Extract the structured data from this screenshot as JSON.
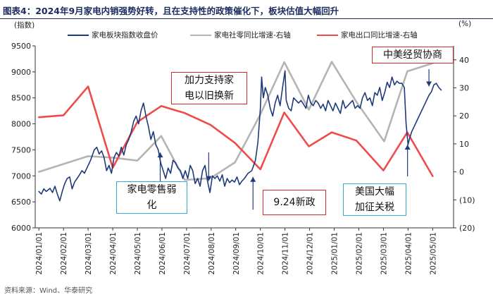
{
  "figure_title": "图表4：2024年9月家电内销强势好转，且在支持性的政策催化下，板块估值大幅回升",
  "source": "资料来源：Wind、华泰研究",
  "units": {
    "left": "(指数)",
    "right": "(%)"
  },
  "colors": {
    "index": "#1f3a7a",
    "domestic": "#b4b4b4",
    "export": "#f04b4b",
    "axis": "#333333"
  },
  "chart_data": {
    "type": "line",
    "xlabel": "",
    "ylabel_left": "(指数)",
    "ylabel_right": "(%)",
    "ylim_left": [
      6000,
      9500
    ],
    "yticks_left": [
      "6000",
      "6500",
      "7000",
      "7500",
      "8000",
      "8500",
      "9000",
      "9500"
    ],
    "ylim_right": [
      -20,
      45
    ],
    "yticks_right": [
      "(20)",
      "(10)",
      "0",
      "10",
      "20",
      "30",
      "40"
    ],
    "x_tick_labels": [
      "2024/01/01",
      "2024/02/01",
      "2024/03/01",
      "2024/04/01",
      "2024/05/01",
      "2024/06/01",
      "2024/07/01",
      "2024/08/01",
      "2024/09/01",
      "2024/10/01",
      "2024/11/01",
      "2024/12/01",
      "2025/01/01",
      "2025/02/01",
      "2025/03/01",
      "2025/04/01",
      "2025/05/01"
    ],
    "series": [
      {
        "name": "家电板块指数收盘价",
        "axis": "left",
        "points": [
          [
            0,
            6700
          ],
          [
            0.1,
            6650
          ],
          [
            0.2,
            6750
          ],
          [
            0.3,
            6700
          ],
          [
            0.45,
            6760
          ],
          [
            0.55,
            6680
          ],
          [
            0.65,
            6800
          ],
          [
            0.75,
            6650
          ],
          [
            0.85,
            6520
          ],
          [
            0.95,
            6700
          ],
          [
            1.05,
            6850
          ],
          [
            1.15,
            6950
          ],
          [
            1.25,
            6980
          ],
          [
            1.35,
            6750
          ],
          [
            1.45,
            6880
          ],
          [
            1.55,
            6950
          ],
          [
            1.65,
            7020
          ],
          [
            1.75,
            7100
          ],
          [
            1.85,
            7050
          ],
          [
            1.95,
            7150
          ],
          [
            2.1,
            7300
          ],
          [
            2.25,
            7500
          ],
          [
            2.35,
            7550
          ],
          [
            2.45,
            7420
          ],
          [
            2.55,
            7480
          ],
          [
            2.65,
            7350
          ],
          [
            2.75,
            7100
          ],
          [
            2.85,
            7200
          ],
          [
            2.95,
            7050
          ],
          [
            3.05,
            7350
          ],
          [
            3.15,
            7450
          ],
          [
            3.25,
            7380
          ],
          [
            3.35,
            7550
          ],
          [
            3.45,
            7400
          ],
          [
            3.55,
            7600
          ],
          [
            3.65,
            7700
          ],
          [
            3.75,
            7850
          ],
          [
            3.85,
            8050
          ],
          [
            3.95,
            8150
          ],
          [
            4.05,
            8000
          ],
          [
            4.15,
            8250
          ],
          [
            4.25,
            8400
          ],
          [
            4.35,
            8150
          ],
          [
            4.45,
            7950
          ],
          [
            4.55,
            7700
          ],
          [
            4.65,
            7850
          ],
          [
            4.75,
            7600
          ],
          [
            4.85,
            7500
          ],
          [
            4.95,
            7250
          ],
          [
            5.05,
            7100
          ],
          [
            5.15,
            6950
          ],
          [
            5.25,
            7150
          ],
          [
            5.35,
            7050
          ],
          [
            5.45,
            7300
          ],
          [
            5.55,
            7250
          ],
          [
            5.65,
            7150
          ],
          [
            5.75,
            7100
          ],
          [
            5.85,
            6950
          ],
          [
            5.95,
            7100
          ],
          [
            6.05,
            6950
          ],
          [
            6.15,
            7200
          ],
          [
            6.25,
            7100
          ],
          [
            6.35,
            6850
          ],
          [
            6.45,
            6950
          ],
          [
            6.55,
            6800
          ],
          [
            6.65,
            7100
          ],
          [
            6.75,
            7200
          ],
          [
            6.85,
            6900
          ],
          [
            6.95,
            6680
          ],
          [
            7.05,
            7000
          ],
          [
            7.15,
            6950
          ],
          [
            7.25,
            7000
          ],
          [
            7.35,
            6900
          ],
          [
            7.45,
            7020
          ],
          [
            7.55,
            6800
          ],
          [
            7.65,
            6950
          ],
          [
            7.75,
            6870
          ],
          [
            7.85,
            6920
          ],
          [
            7.95,
            6880
          ],
          [
            8.05,
            6980
          ],
          [
            8.15,
            6830
          ],
          [
            8.25,
            6900
          ],
          [
            8.35,
            6950
          ],
          [
            8.5,
            7050
          ],
          [
            8.65,
            7100
          ],
          [
            8.8,
            7300
          ],
          [
            8.9,
            7650
          ],
          [
            9.0,
            8300
          ],
          [
            9.05,
            8900
          ],
          [
            9.12,
            8500
          ],
          [
            9.2,
            8700
          ],
          [
            9.3,
            8550
          ],
          [
            9.4,
            8300
          ],
          [
            9.5,
            8150
          ],
          [
            9.6,
            8400
          ],
          [
            9.7,
            8550
          ],
          [
            9.8,
            8350
          ],
          [
            9.9,
            8700
          ],
          [
            10.0,
            9020
          ],
          [
            10.05,
            8450
          ],
          [
            10.15,
            8300
          ],
          [
            10.25,
            8250
          ],
          [
            10.35,
            8500
          ],
          [
            10.45,
            8450
          ],
          [
            10.55,
            8400
          ],
          [
            10.65,
            8450
          ],
          [
            10.75,
            8380
          ],
          [
            10.85,
            8300
          ],
          [
            10.95,
            8550
          ],
          [
            11.05,
            8400
          ],
          [
            11.15,
            8350
          ],
          [
            11.25,
            8450
          ],
          [
            11.35,
            8400
          ],
          [
            11.45,
            8300
          ],
          [
            11.55,
            8380
          ],
          [
            11.65,
            8250
          ],
          [
            11.75,
            8450
          ],
          [
            11.85,
            8350
          ],
          [
            11.95,
            8250
          ],
          [
            12.05,
            8400
          ],
          [
            12.15,
            8300
          ],
          [
            12.25,
            8200
          ],
          [
            12.35,
            8450
          ],
          [
            12.45,
            8300
          ],
          [
            12.55,
            8350
          ],
          [
            12.65,
            8400
          ],
          [
            12.75,
            8450
          ],
          [
            12.85,
            8300
          ],
          [
            12.95,
            8350
          ],
          [
            13.05,
            8300
          ],
          [
            13.15,
            8500
          ],
          [
            13.25,
            8600
          ],
          [
            13.35,
            8450
          ],
          [
            13.45,
            8500
          ],
          [
            13.55,
            8350
          ],
          [
            13.65,
            8600
          ],
          [
            13.75,
            8550
          ],
          [
            13.85,
            8700
          ],
          [
            13.95,
            8450
          ],
          [
            14.05,
            8600
          ],
          [
            14.15,
            8800
          ],
          [
            14.25,
            8700
          ],
          [
            14.35,
            8900
          ],
          [
            14.45,
            8750
          ],
          [
            14.55,
            8820
          ],
          [
            14.65,
            8780
          ],
          [
            14.75,
            8780
          ],
          [
            14.85,
            8700
          ],
          [
            14.92,
            8000
          ],
          [
            15.0,
            7600
          ],
          [
            15.05,
            7700
          ],
          [
            15.15,
            7850
          ],
          [
            15.25,
            7950
          ],
          [
            15.35,
            8050
          ],
          [
            15.45,
            8150
          ],
          [
            15.55,
            8250
          ],
          [
            15.65,
            8350
          ],
          [
            15.75,
            8450
          ],
          [
            15.85,
            8550
          ],
          [
            15.95,
            8620
          ],
          [
            16.05,
            8750
          ],
          [
            16.15,
            8780
          ],
          [
            16.25,
            8700
          ],
          [
            16.35,
            8650
          ]
        ]
      },
      {
        "name": "家电社零同比增速-右轴",
        "axis": "right",
        "points": [
          [
            0,
            0
          ],
          [
            2,
            5.6
          ],
          [
            3,
            5.1
          ],
          [
            4,
            4.0
          ],
          [
            4.97,
            12.8
          ],
          [
            5.93,
            -2.9
          ],
          [
            6.97,
            -2.3
          ],
          [
            7.97,
            3.4
          ],
          [
            9,
            20.5
          ],
          [
            9.97,
            39.2
          ],
          [
            10.97,
            22.2
          ],
          [
            11.9,
            39.3
          ],
          [
            12.9,
            25
          ],
          [
            14.03,
            10.9
          ],
          [
            14.97,
            35.9
          ],
          [
            16,
            38.8
          ]
        ]
      },
      {
        "name": "家电出口同比增速-右轴",
        "axis": "right",
        "points": [
          [
            0,
            19.5
          ],
          [
            1,
            20.2
          ],
          [
            2,
            30.5
          ],
          [
            3,
            1.5
          ],
          [
            4,
            17.8
          ],
          [
            4.97,
            23.5
          ],
          [
            5.93,
            21.0
          ],
          [
            6.97,
            16.8
          ],
          [
            7.97,
            10.3
          ],
          [
            9,
            0.9
          ],
          [
            9.97,
            21.2
          ],
          [
            10.97,
            9.1
          ],
          [
            11.9,
            14.1
          ],
          [
            12.9,
            11.2
          ],
          [
            14,
            0.5
          ],
          [
            14.97,
            14.1
          ],
          [
            16,
            -1.5
          ]
        ]
      }
    ],
    "annotations": [
      {
        "text": "中美经贸协商",
        "style": "red"
      },
      {
        "text": "加力支持家\n电以旧换新",
        "style": "red"
      },
      {
        "text": "9.24新政",
        "style": "red"
      },
      {
        "text": "家电零售弱\n化",
        "style": "blue"
      },
      {
        "text": "美国大幅\n加征关税",
        "style": "blue"
      }
    ]
  }
}
